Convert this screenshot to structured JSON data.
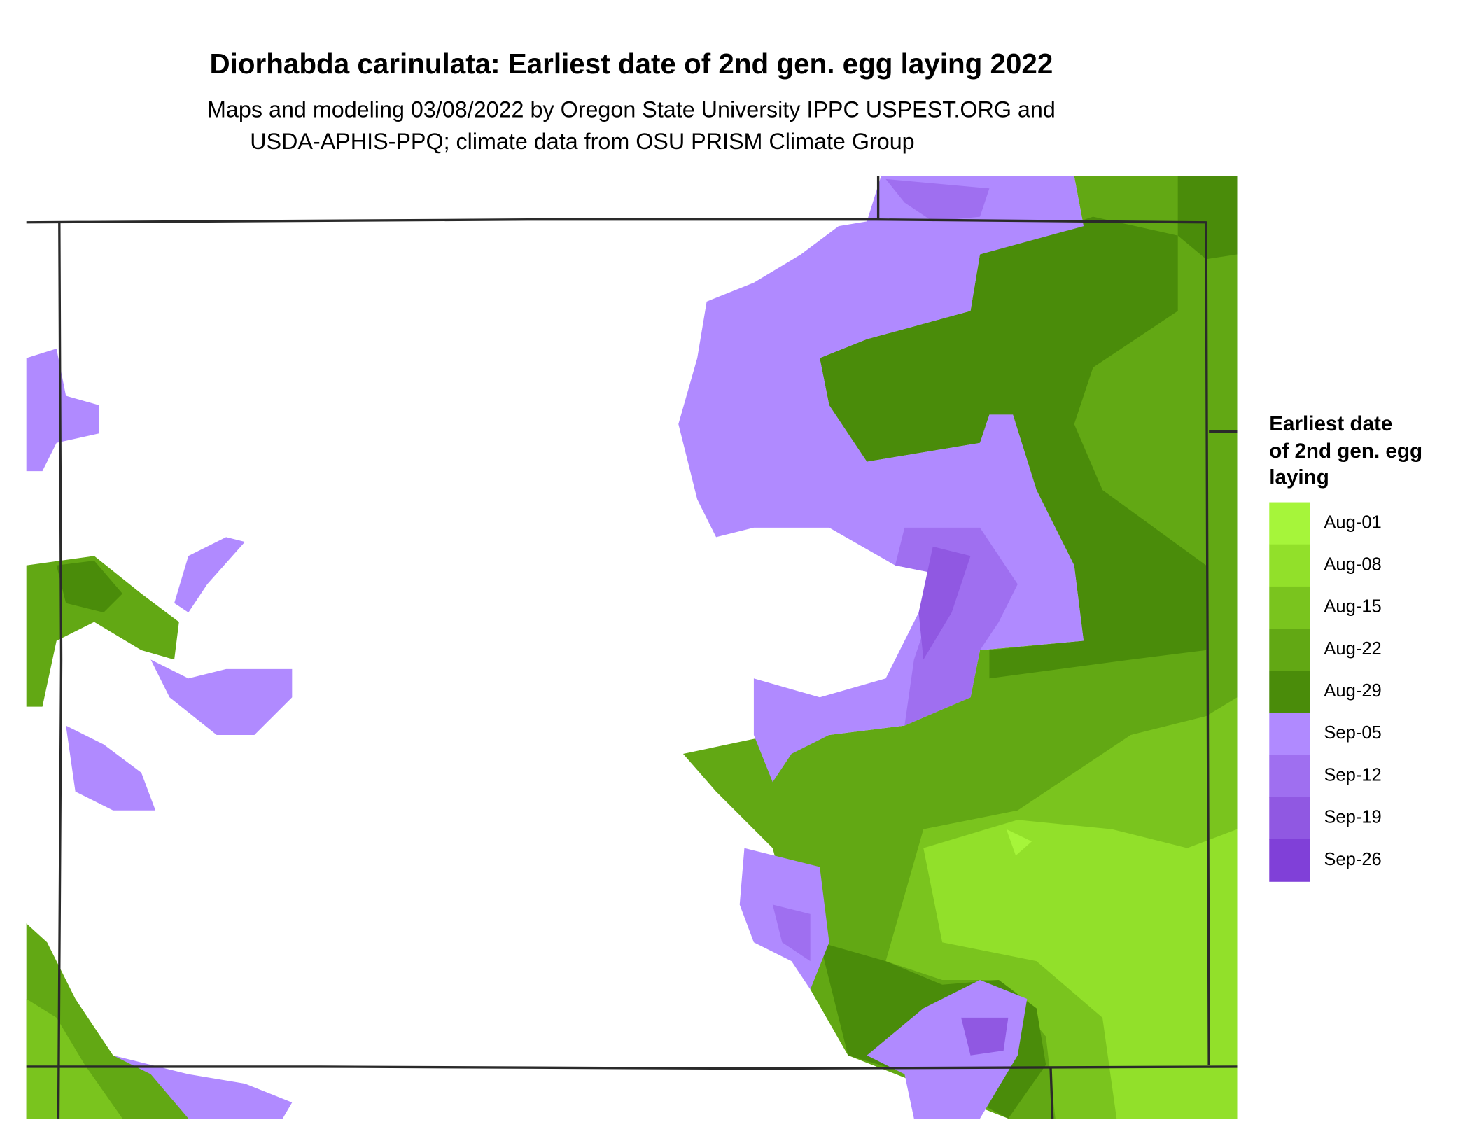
{
  "header": {
    "title": "Diorhabda carinulata: Earliest date of 2nd gen. egg laying 2022",
    "subtitle_lines": [
      "Maps and modeling 03/08/2022 by Oregon State University IPPC USPEST.ORG and",
      "USDA-APHIS-PPQ; climate data from OSU PRISM Climate Group"
    ]
  },
  "legend": {
    "title_lines": [
      "Earliest date",
      "of 2nd gen. egg",
      "laying"
    ],
    "items": [
      {
        "label": "Aug-01",
        "color": "#a6f53a"
      },
      {
        "label": "Aug-08",
        "color": "#92e02a"
      },
      {
        "label": "Aug-15",
        "color": "#7ac41e"
      },
      {
        "label": "Aug-22",
        "color": "#62a814"
      },
      {
        "label": "Aug-29",
        "color": "#4a8c0a"
      },
      {
        "label": "Sep-05",
        "color": "#b08aff"
      },
      {
        "label": "Sep-12",
        "color": "#9f6ff0"
      },
      {
        "label": "Sep-19",
        "color": "#9058e2"
      },
      {
        "label": "Sep-26",
        "color": "#8040d8"
      }
    ]
  }
}
